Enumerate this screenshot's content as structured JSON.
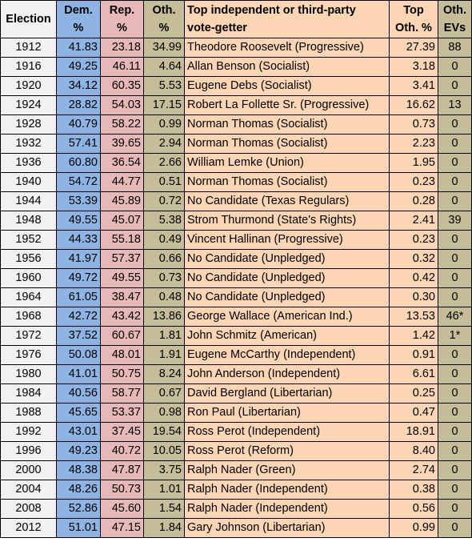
{
  "headers": {
    "election": "Election",
    "dem": [
      "Dem.",
      "%"
    ],
    "rep": [
      "Rep.",
      "%"
    ],
    "oth": [
      "Oth.",
      "%"
    ],
    "top_name": [
      "Top independent or third-party",
      "vote-getter"
    ],
    "top_pct": [
      "Top",
      "Oth. %"
    ],
    "oth_evs": [
      "Oth.",
      "EVs"
    ]
  },
  "rows": [
    [
      "1912",
      "41.83",
      "23.18",
      "34.99",
      "Theodore Roosevelt (Progressive)",
      "27.39",
      "88"
    ],
    [
      "1916",
      "49.25",
      "46.11",
      "4.64",
      "Allan Benson (Socialist)",
      "3.18",
      "0"
    ],
    [
      "1920",
      "34.12",
      "60.35",
      "5.53",
      "Eugene Debs (Socialist)",
      "3.41",
      "0"
    ],
    [
      "1924",
      "28.82",
      "54.03",
      "17.15",
      "Robert La Follette Sr. (Progressive)",
      "16.62",
      "13"
    ],
    [
      "1928",
      "40.79",
      "58.22",
      "0.99",
      "Norman Thomas (Socialist)",
      "0.73",
      "0"
    ],
    [
      "1932",
      "57.41",
      "39.65",
      "2.94",
      "Norman Thomas (Socialist)",
      "2.23",
      "0"
    ],
    [
      "1936",
      "60.80",
      "36.54",
      "2.66",
      "William Lemke (Union)",
      "1.95",
      "0"
    ],
    [
      "1940",
      "54.72",
      "44.77",
      "0.51",
      "Norman Thomas (Socialist)",
      "0.23",
      "0"
    ],
    [
      "1944",
      "53.39",
      "45.89",
      "0.72",
      "No Candidate (Texas Regulars)",
      "0.28",
      "0"
    ],
    [
      "1948",
      "49.55",
      "45.07",
      "5.38",
      "Strom Thurmond (State's Rights)",
      "2.41",
      "39"
    ],
    [
      "1952",
      "44.33",
      "55.18",
      "0.49",
      "Vincent Hallinan (Progressive)",
      "0.23",
      "0"
    ],
    [
      "1956",
      "41.97",
      "57.37",
      "0.66",
      "No Candidate (Unpledged)",
      "0.32",
      "0"
    ],
    [
      "1960",
      "49.72",
      "49.55",
      "0.73",
      "No Candidate (Unpledged)",
      "0.42",
      "0"
    ],
    [
      "1964",
      "61.05",
      "38.47",
      "0.48",
      "No Candidate (Unpledged)",
      "0.30",
      "0"
    ],
    [
      "1968",
      "42.72",
      "43.42",
      "13.86",
      "George Wallace (American Ind.)",
      "13.53",
      "46*"
    ],
    [
      "1972",
      "37.52",
      "60.67",
      "1.81",
      "John Schmitz (American)",
      "1.42",
      "1*"
    ],
    [
      "1976",
      "50.08",
      "48.01",
      "1.91",
      "Eugene McCarthy (Independent)",
      "0.91",
      "0"
    ],
    [
      "1980",
      "41.01",
      "50.75",
      "8.24",
      "John Anderson (Independent)",
      "6.61",
      "0"
    ],
    [
      "1984",
      "40.56",
      "58.77",
      "0.67",
      "David Bergland (Libertarian)",
      "0.25",
      "0"
    ],
    [
      "1988",
      "45.65",
      "53.37",
      "0.98",
      "Ron Paul (Libertarian)",
      "0.47",
      "0"
    ],
    [
      "1992",
      "43.01",
      "37.45",
      "19.54",
      "Ross Perot (Independent)",
      "18.91",
      "0"
    ],
    [
      "1996",
      "49.23",
      "40.72",
      "10.05",
      "Ross Perot (Reform)",
      "8.40",
      "0"
    ],
    [
      "2000",
      "48.38",
      "47.87",
      "3.75",
      "Ralph Nader (Green)",
      "2.74",
      "0"
    ],
    [
      "2004",
      "48.26",
      "50.73",
      "1.01",
      "Ralph Nader (Independent)",
      "0.38",
      "0"
    ],
    [
      "2008",
      "52.86",
      "45.60",
      "1.54",
      "Ralph Nader (Independent)",
      "0.56",
      "0"
    ],
    [
      "2012",
      "51.01",
      "47.15",
      "1.84",
      "Gary Johnson (Libertarian)",
      "0.99",
      "0"
    ]
  ],
  "colors": {
    "election": "#f2f2f2",
    "dem": "#8db4e2",
    "rep": "#e6b8b7",
    "oth": "#c4bd97",
    "top": "#fcd5b4",
    "evs": "#c4bd97"
  }
}
